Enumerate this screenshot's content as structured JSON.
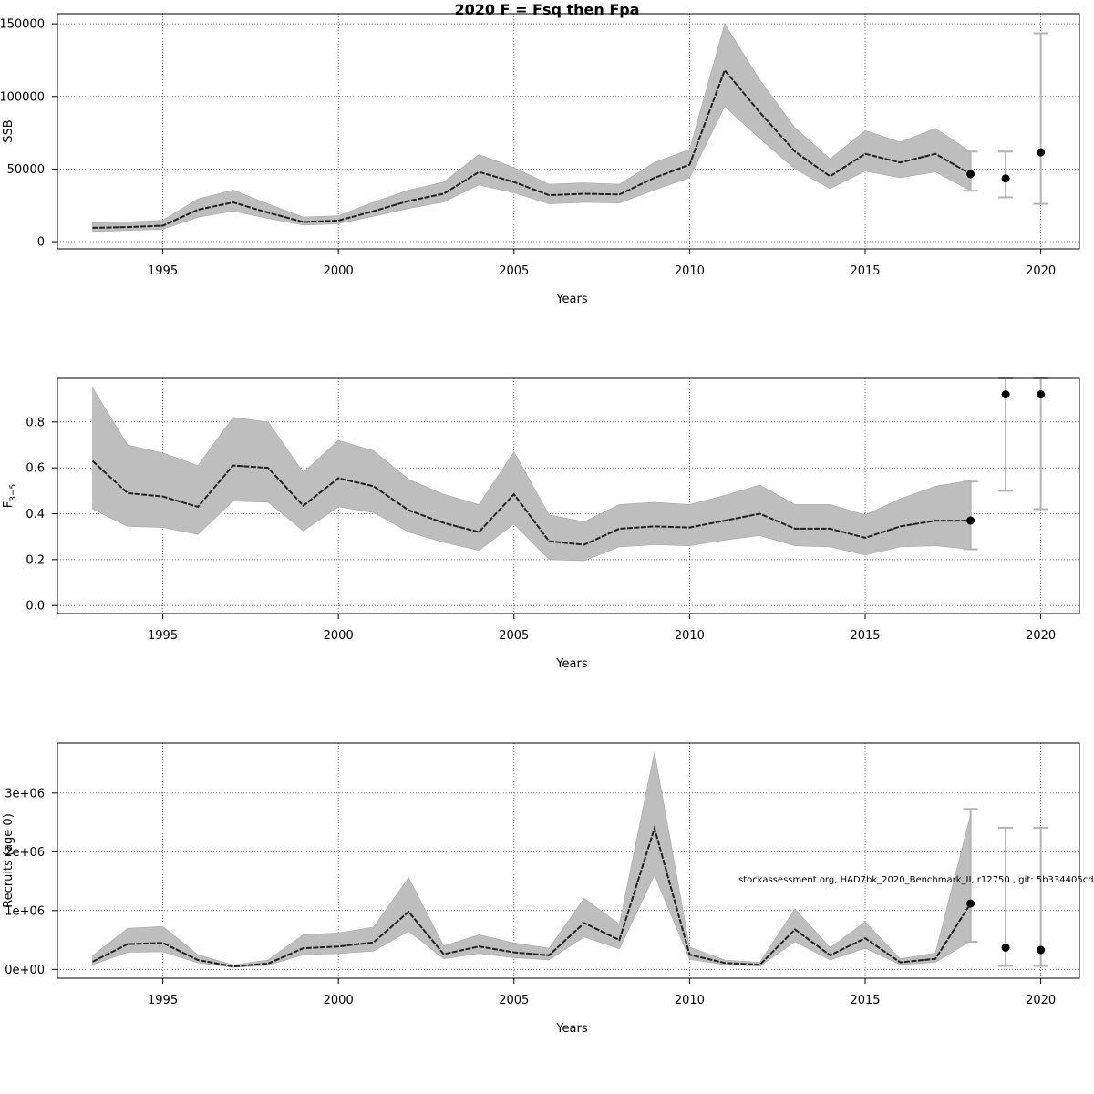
{
  "title": "2020 F = Fsq then Fpa",
  "footnote": "stockassessment.org, HAD7bk_2020_Benchmark_II, r12750 , git: 5b334405cda7",
  "colors": {
    "band": "#bebebe",
    "line": "#222222",
    "grid": "#555555",
    "errorbar": "#b3b3b3",
    "point": "#000000"
  },
  "chart_data": [
    {
      "type": "line",
      "xlabel": "Years",
      "ylabel": "SSB",
      "xlim": [
        1992,
        2021.1
      ],
      "ylim": [
        -5000,
        157000
      ],
      "xticks": [
        1995,
        2000,
        2005,
        2010,
        2015,
        2020
      ],
      "yticks": [
        0,
        50000,
        100000,
        150000
      ],
      "ytick_labels": [
        "0",
        "50000",
        "100000",
        "150000"
      ],
      "grid": true,
      "series": [
        {
          "x": [
            1993,
            1994,
            1995,
            1996,
            1997,
            1998,
            1999,
            2000,
            2001,
            2002,
            2003,
            2004,
            2005,
            2006,
            2007,
            2008,
            2009,
            2010,
            2011,
            2012,
            2013,
            2014,
            2015,
            2016,
            2017,
            2018
          ],
          "y": [
            9500,
            10000,
            11000,
            22000,
            27000,
            20000,
            13500,
            14500,
            21000,
            28000,
            33000,
            48000,
            41000,
            32000,
            33000,
            32500,
            44000,
            53000,
            118000,
            89000,
            62000,
            45000,
            60500,
            54500,
            60500,
            46500
          ],
          "lower": [
            7000,
            7700,
            8500,
            16800,
            21000,
            16000,
            11300,
            12300,
            17500,
            22800,
            27300,
            39000,
            33700,
            26000,
            27000,
            26600,
            35500,
            44000,
            93000,
            71000,
            50000,
            36500,
            48500,
            44000,
            48000,
            35000
          ],
          "upper": [
            13000,
            13600,
            14800,
            29500,
            35500,
            26000,
            17000,
            17800,
            27300,
            35500,
            41000,
            60000,
            51000,
            39500,
            40500,
            39500,
            54500,
            63500,
            150000,
            111500,
            78500,
            57000,
            76500,
            68500,
            78000,
            62000
          ]
        }
      ],
      "points": [
        {
          "x": 2018,
          "y": 46500,
          "lower": 35000,
          "upper": 62000
        },
        {
          "x": 2019,
          "y": 43500,
          "lower": 30500,
          "upper": 62000
        },
        {
          "x": 2020,
          "y": 61500,
          "lower": 26000,
          "upper": 143500
        }
      ]
    },
    {
      "type": "line",
      "xlabel": "Years",
      "ylabel": "F",
      "ylabel_sub": "3−5",
      "xlim": [
        1992,
        2021.1
      ],
      "ylim": [
        -0.035,
        0.99
      ],
      "xticks": [
        1995,
        2000,
        2005,
        2010,
        2015,
        2020
      ],
      "yticks": [
        0,
        0.2,
        0.4,
        0.6,
        0.8
      ],
      "ytick_labels": [
        "0.0",
        "0.2",
        "0.4",
        "0.6",
        "0.8"
      ],
      "grid": true,
      "series": [
        {
          "x": [
            1993,
            1994,
            1995,
            1996,
            1997,
            1998,
            1999,
            2000,
            2001,
            2002,
            2003,
            2004,
            2005,
            2006,
            2007,
            2008,
            2009,
            2010,
            2011,
            2012,
            2013,
            2014,
            2015,
            2016,
            2017,
            2018
          ],
          "y": [
            0.63,
            0.49,
            0.475,
            0.43,
            0.61,
            0.6,
            0.435,
            0.555,
            0.52,
            0.415,
            0.36,
            0.32,
            0.485,
            0.28,
            0.265,
            0.335,
            0.345,
            0.34,
            0.37,
            0.4,
            0.335,
            0.335,
            0.295,
            0.345,
            0.37,
            0.37
          ],
          "lower": [
            0.42,
            0.345,
            0.34,
            0.31,
            0.455,
            0.45,
            0.325,
            0.43,
            0.405,
            0.32,
            0.275,
            0.24,
            0.355,
            0.2,
            0.195,
            0.255,
            0.265,
            0.26,
            0.285,
            0.305,
            0.26,
            0.255,
            0.22,
            0.255,
            0.26,
            0.245
          ],
          "upper": [
            0.95,
            0.7,
            0.665,
            0.61,
            0.82,
            0.8,
            0.58,
            0.72,
            0.675,
            0.55,
            0.485,
            0.44,
            0.67,
            0.395,
            0.365,
            0.44,
            0.45,
            0.44,
            0.48,
            0.525,
            0.44,
            0.44,
            0.395,
            0.465,
            0.52,
            0.545
          ]
        }
      ],
      "points": [
        {
          "x": 2018,
          "y": 0.37,
          "lower": 0.245,
          "upper": 0.54
        },
        {
          "x": 2019,
          "y": 0.92,
          "lower": 0.5,
          "upper": 0.99
        },
        {
          "x": 2020,
          "y": 0.92,
          "lower": 0.42,
          "upper": 0.99
        }
      ]
    },
    {
      "type": "line",
      "xlabel": "Years",
      "ylabel": "Recruits (age 0)",
      "xlim": [
        1992,
        2021.1
      ],
      "ylim": [
        -150000,
        3850000
      ],
      "xticks": [
        1995,
        2000,
        2005,
        2010,
        2015,
        2020
      ],
      "yticks": [
        0,
        1000000,
        2000000,
        3000000
      ],
      "ytick_labels": [
        "0e+00",
        "1e+06",
        "2e+06",
        "3e+06"
      ],
      "grid": true,
      "series": [
        {
          "x": [
            1993,
            1994,
            1995,
            1996,
            1997,
            1998,
            1999,
            2000,
            2001,
            2002,
            2003,
            2004,
            2005,
            2006,
            2007,
            2008,
            2009,
            2010,
            2011,
            2012,
            2013,
            2014,
            2015,
            2016,
            2017,
            2018
          ],
          "y": [
            130000,
            430000,
            450000,
            160000,
            50000,
            100000,
            360000,
            390000,
            460000,
            980000,
            260000,
            390000,
            290000,
            240000,
            790000,
            500000,
            2400000,
            250000,
            110000,
            80000,
            680000,
            240000,
            530000,
            120000,
            180000,
            1120000
          ],
          "lower": [
            80000,
            290000,
            300000,
            110000,
            35000,
            70000,
            250000,
            270000,
            310000,
            650000,
            180000,
            270000,
            200000,
            160000,
            550000,
            350000,
            1600000,
            170000,
            80000,
            55000,
            470000,
            160000,
            360000,
            80000,
            120000,
            480000
          ],
          "upper": [
            230000,
            700000,
            730000,
            250000,
            75000,
            160000,
            590000,
            620000,
            720000,
            1560000,
            400000,
            590000,
            450000,
            360000,
            1210000,
            770000,
            3700000,
            380000,
            160000,
            120000,
            1030000,
            370000,
            810000,
            180000,
            280000,
            2630000
          ]
        }
      ],
      "points": [
        {
          "x": 2018,
          "y": 1120000,
          "lower": 470000,
          "upper": 2730000
        },
        {
          "x": 2019,
          "y": 370000,
          "lower": 60000,
          "upper": 2410000
        },
        {
          "x": 2020,
          "y": 330000,
          "lower": 60000,
          "upper": 2410000
        }
      ]
    }
  ]
}
